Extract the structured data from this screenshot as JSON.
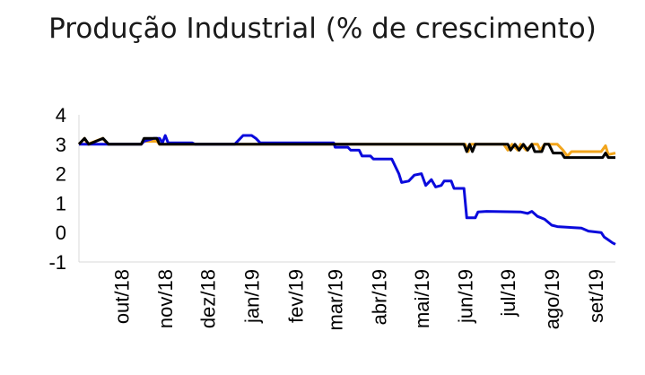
{
  "chart_data": {
    "type": "line",
    "title": "Produção Industrial (% de crescimento)",
    "xlabel": "",
    "ylabel": "",
    "ylim": [
      -1,
      4
    ],
    "yticks": [
      "4",
      "3",
      "2",
      "1",
      "0",
      "-1"
    ],
    "x_range": [
      "2018-09-01",
      "2019-09-15"
    ],
    "xtick_labels": [
      {
        "label": "out/18",
        "date": "2018-10-01"
      },
      {
        "label": "nov/18",
        "date": "2018-11-01"
      },
      {
        "label": "dez/18",
        "date": "2018-12-01"
      },
      {
        "label": "jan/19",
        "date": "2019-01-01"
      },
      {
        "label": "fev/19",
        "date": "2019-02-01"
      },
      {
        "label": "mar/19",
        "date": "2019-03-01"
      },
      {
        "label": "abr/19",
        "date": "2019-04-01"
      },
      {
        "label": "mai/19",
        "date": "2019-05-01"
      },
      {
        "label": "jun/19",
        "date": "2019-06-01"
      },
      {
        "label": "jul/19",
        "date": "2019-07-01"
      },
      {
        "label": "ago/19",
        "date": "2019-08-01"
      },
      {
        "label": "set/19",
        "date": "2019-09-01"
      }
    ],
    "grid": false,
    "legend": "none",
    "series": [
      {
        "color": "#f2a51c",
        "points": [
          [
            "2018-09-01",
            3.0
          ],
          [
            "2018-09-05",
            3.2
          ],
          [
            "2018-09-07",
            3.0
          ],
          [
            "2018-09-18",
            3.2
          ],
          [
            "2018-09-21",
            3.0
          ],
          [
            "2018-10-15",
            3.0
          ],
          [
            "2018-10-17",
            3.1
          ],
          [
            "2018-10-26",
            3.1
          ],
          [
            "2018-10-28",
            3.0
          ],
          [
            "2019-06-01",
            3.0
          ],
          [
            "2019-06-03",
            2.75
          ],
          [
            "2019-06-05",
            3.0
          ],
          [
            "2019-06-28",
            3.0
          ],
          [
            "2019-07-01",
            2.8
          ],
          [
            "2019-07-04",
            3.0
          ],
          [
            "2019-07-08",
            2.8
          ],
          [
            "2019-07-10",
            3.0
          ],
          [
            "2019-07-14",
            2.8
          ],
          [
            "2019-07-18",
            3.0
          ],
          [
            "2019-07-22",
            3.0
          ],
          [
            "2019-07-24",
            2.8
          ],
          [
            "2019-07-27",
            3.0
          ],
          [
            "2019-08-05",
            3.0
          ],
          [
            "2019-08-09",
            2.8
          ],
          [
            "2019-08-12",
            2.6
          ],
          [
            "2019-08-15",
            2.75
          ],
          [
            "2019-09-05",
            2.75
          ],
          [
            "2019-09-08",
            2.95
          ],
          [
            "2019-09-10",
            2.65
          ],
          [
            "2019-09-15",
            2.7
          ]
        ]
      },
      {
        "color": "#0a0adc",
        "points": [
          [
            "2018-09-01",
            3.0
          ],
          [
            "2018-10-15",
            3.0
          ],
          [
            "2018-10-17",
            3.1
          ],
          [
            "2018-10-24",
            3.2
          ],
          [
            "2018-10-28",
            3.2
          ],
          [
            "2018-10-30",
            3.05
          ],
          [
            "2018-11-01",
            3.3
          ],
          [
            "2018-11-03",
            3.05
          ],
          [
            "2018-11-20",
            3.05
          ],
          [
            "2018-11-22",
            3.0
          ],
          [
            "2018-12-20",
            3.0
          ],
          [
            "2018-12-23",
            3.15
          ],
          [
            "2018-12-26",
            3.3
          ],
          [
            "2019-01-01",
            3.3
          ],
          [
            "2019-01-04",
            3.2
          ],
          [
            "2019-01-07",
            3.05
          ],
          [
            "2019-02-28",
            3.05
          ],
          [
            "2019-03-01",
            2.9
          ],
          [
            "2019-03-10",
            2.9
          ],
          [
            "2019-03-12",
            2.8
          ],
          [
            "2019-03-18",
            2.8
          ],
          [
            "2019-03-20",
            2.6
          ],
          [
            "2019-03-26",
            2.6
          ],
          [
            "2019-03-28",
            2.5
          ],
          [
            "2019-04-10",
            2.5
          ],
          [
            "2019-04-15",
            2.0
          ],
          [
            "2019-04-17",
            1.7
          ],
          [
            "2019-04-22",
            1.75
          ],
          [
            "2019-04-26",
            1.95
          ],
          [
            "2019-05-01",
            2.0
          ],
          [
            "2019-05-04",
            1.6
          ],
          [
            "2019-05-08",
            1.8
          ],
          [
            "2019-05-11",
            1.55
          ],
          [
            "2019-05-15",
            1.6
          ],
          [
            "2019-05-17",
            1.75
          ],
          [
            "2019-05-22",
            1.75
          ],
          [
            "2019-05-24",
            1.5
          ],
          [
            "2019-05-31",
            1.5
          ],
          [
            "2019-06-02",
            0.5
          ],
          [
            "2019-06-08",
            0.5
          ],
          [
            "2019-06-10",
            0.7
          ],
          [
            "2019-06-16",
            0.72
          ],
          [
            "2019-07-10",
            0.7
          ],
          [
            "2019-07-15",
            0.65
          ],
          [
            "2019-07-18",
            0.72
          ],
          [
            "2019-07-22",
            0.55
          ],
          [
            "2019-07-27",
            0.45
          ],
          [
            "2019-08-01",
            0.25
          ],
          [
            "2019-08-05",
            0.2
          ],
          [
            "2019-08-22",
            0.15
          ],
          [
            "2019-08-27",
            0.05
          ],
          [
            "2019-09-05",
            0.0
          ],
          [
            "2019-09-07",
            -0.15
          ],
          [
            "2019-09-10",
            -0.25
          ],
          [
            "2019-09-13",
            -0.35
          ],
          [
            "2019-09-15",
            -0.4
          ]
        ]
      },
      {
        "color": "#000000",
        "points": [
          [
            "2018-09-01",
            3.0
          ],
          [
            "2018-09-05",
            3.2
          ],
          [
            "2018-09-08",
            3.0
          ],
          [
            "2018-09-18",
            3.2
          ],
          [
            "2018-09-22",
            3.0
          ],
          [
            "2018-10-15",
            3.0
          ],
          [
            "2018-10-17",
            3.2
          ],
          [
            "2018-10-26",
            3.2
          ],
          [
            "2018-10-28",
            3.0
          ],
          [
            "2019-05-31",
            3.0
          ],
          [
            "2019-06-02",
            2.75
          ],
          [
            "2019-06-04",
            3.0
          ],
          [
            "2019-06-06",
            2.75
          ],
          [
            "2019-06-08",
            3.0
          ],
          [
            "2019-07-01",
            3.0
          ],
          [
            "2019-07-03",
            2.8
          ],
          [
            "2019-07-06",
            3.0
          ],
          [
            "2019-07-09",
            2.8
          ],
          [
            "2019-07-12",
            3.0
          ],
          [
            "2019-07-15",
            2.8
          ],
          [
            "2019-07-18",
            3.0
          ],
          [
            "2019-07-20",
            2.75
          ],
          [
            "2019-07-25",
            2.75
          ],
          [
            "2019-07-27",
            3.0
          ],
          [
            "2019-07-30",
            3.0
          ],
          [
            "2019-08-02",
            2.7
          ],
          [
            "2019-08-08",
            2.7
          ],
          [
            "2019-08-10",
            2.55
          ],
          [
            "2019-09-06",
            2.55
          ],
          [
            "2019-09-08",
            2.7
          ],
          [
            "2019-09-10",
            2.55
          ],
          [
            "2019-09-15",
            2.55
          ]
        ]
      }
    ]
  }
}
